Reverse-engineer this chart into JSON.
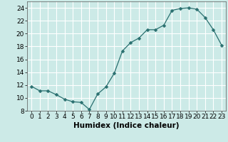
{
  "x": [
    0,
    1,
    2,
    3,
    4,
    5,
    6,
    7,
    8,
    9,
    10,
    11,
    12,
    13,
    14,
    15,
    16,
    17,
    18,
    19,
    20,
    21,
    22,
    23
  ],
  "y": [
    11.8,
    11.1,
    11.1,
    10.5,
    9.8,
    9.4,
    9.3,
    8.2,
    10.6,
    11.7,
    13.8,
    17.3,
    18.6,
    19.3,
    20.6,
    20.6,
    21.3,
    23.6,
    23.9,
    24.0,
    23.8,
    22.5,
    20.6,
    18.2
  ],
  "line_color": "#2a7070",
  "marker": "D",
  "marker_size": 2.5,
  "bg_color": "#cceae7",
  "grid_color": "#ffffff",
  "xlabel": "Humidex (Indice chaleur)",
  "xlim": [
    -0.5,
    23.5
  ],
  "ylim": [
    8,
    25
  ],
  "yticks": [
    8,
    10,
    12,
    14,
    16,
    18,
    20,
    22,
    24
  ],
  "xticks": [
    0,
    1,
    2,
    3,
    4,
    5,
    6,
    7,
    8,
    9,
    10,
    11,
    12,
    13,
    14,
    15,
    16,
    17,
    18,
    19,
    20,
    21,
    22,
    23
  ],
  "xlabel_fontsize": 7.5,
  "tick_fontsize": 6.5,
  "linewidth": 0.9
}
